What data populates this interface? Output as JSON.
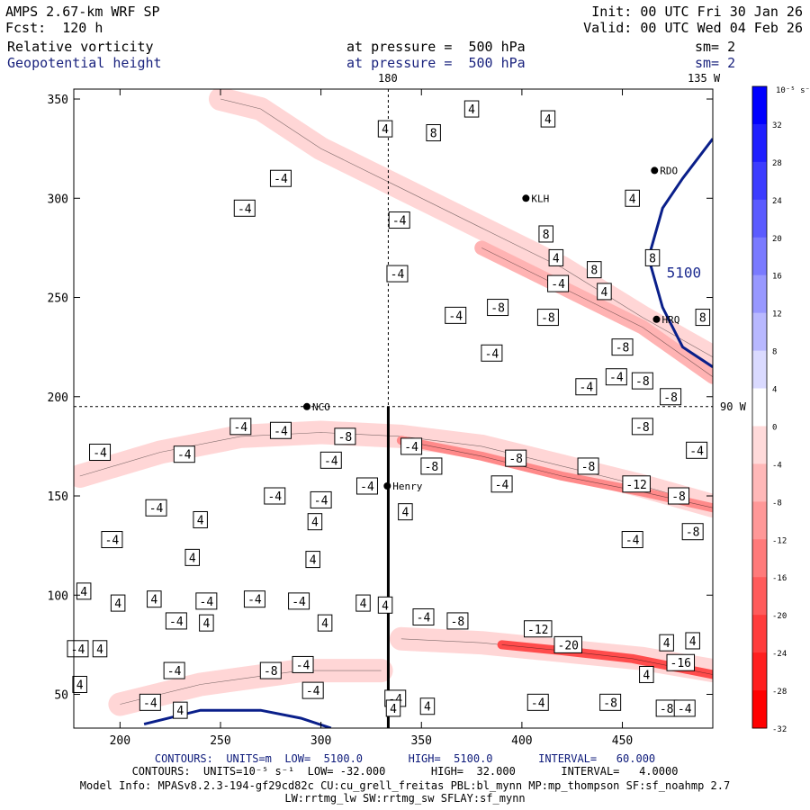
{
  "header": {
    "model": "AMPS 2.67-km WRF SP",
    "forecast": "Fcst:  120 h",
    "init": "Init: 00 UTC Fri 30 Jan 26",
    "valid": "Valid: 00 UTC Wed 04 Feb 26",
    "field1_name": "Relative vorticity",
    "field1_level": "at pressure =  500 hPa",
    "field1_smooth": "sm= 2",
    "field2_name": "Geopotential height",
    "field2_level": "at pressure =  500 hPa",
    "field2_smooth": "sm= 2"
  },
  "map_labels": {
    "lon_180": "180",
    "lon_135w": "135 W",
    "lat_90w": "90 W",
    "contour_5100": "5100"
  },
  "stations": [
    {
      "name": "NCO",
      "x": 293,
      "y": 195
    },
    {
      "name": "Henry",
      "x": 333,
      "y": 155
    },
    {
      "name": "KLH",
      "x": 402,
      "y": 300
    },
    {
      "name": "RDO",
      "x": 466,
      "y": 314
    },
    {
      "name": "HRQ",
      "x": 467,
      "y": 239
    }
  ],
  "colorbar": {
    "units": "10⁻⁵ s⁻¹",
    "ticks": [
      "32",
      "28",
      "24",
      "20",
      "16",
      "12",
      "8",
      "4",
      "0",
      "-4",
      "-8",
      "-12",
      "-16",
      "-20",
      "-24",
      "-28",
      "-32"
    ],
    "colors": [
      "#0000ff",
      "#1f1fff",
      "#3c3cff",
      "#5b5bff",
      "#7a7aff",
      "#9898ff",
      "#b8b8ff",
      "#dadaff",
      "#ffffff",
      "#ffdada",
      "#ffb8b8",
      "#ff9898",
      "#ff7a7a",
      "#ff5b5b",
      "#ff3c3c",
      "#ff1f1f",
      "#ff0000"
    ]
  },
  "footer": {
    "line1": "CONTOURS:  UNITS=m  LOW=  5100.0       HIGH=  5100.0       INTERVAL=   60.000",
    "line2": "CONTOURS:  UNITS=10⁻⁵ s⁻¹  LOW= -32.000       HIGH=  32.000       INTERVAL=   4.0000",
    "line3": "Model Info: MPASv8.2.3-194-gf29cd82c CU:cu_grell_freitas PBL:bl_mynn MP:mp_thompson SF:sf_noahmp 2.7",
    "line4": "LW:rrtmg_lw SW:rrtmg_sw SFLAY:sf_mynn"
  },
  "chart_data": {
    "type": "contour",
    "title": "Relative vorticity / Geopotential height at 500 hPa",
    "xlim": [
      177,
      495
    ],
    "ylim": [
      33,
      355
    ],
    "xticks": [
      200,
      250,
      300,
      350,
      400,
      450
    ],
    "yticks": [
      50,
      100,
      150,
      200,
      250,
      300,
      350
    ],
    "xtick_labels": [
      "200",
      "250",
      "300",
      "350",
      "400",
      "450"
    ],
    "ytick_labels": [
      "50",
      "100",
      "150",
      "200",
      "250",
      "300",
      "350"
    ],
    "vorticity_bands": [
      {
        "name": "upper-left-band",
        "level": -4,
        "points": [
          [
            250,
            350
          ],
          [
            270,
            345
          ],
          [
            300,
            325
          ],
          [
            340,
            305
          ],
          [
            380,
            285
          ],
          [
            420,
            265
          ],
          [
            460,
            240
          ],
          [
            495,
            220
          ]
        ]
      },
      {
        "name": "upper-right-band",
        "level": -8,
        "points": [
          [
            380,
            275
          ],
          [
            420,
            255
          ],
          [
            460,
            235
          ],
          [
            495,
            210
          ]
        ]
      },
      {
        "name": "mid-band",
        "level": -4,
        "points": [
          [
            180,
            160
          ],
          [
            220,
            172
          ],
          [
            260,
            180
          ],
          [
            300,
            182
          ],
          [
            340,
            180
          ],
          [
            380,
            175
          ],
          [
            420,
            165
          ],
          [
            460,
            155
          ],
          [
            495,
            145
          ]
        ]
      },
      {
        "name": "mid-core",
        "level": -12,
        "points": [
          [
            340,
            178
          ],
          [
            380,
            170
          ],
          [
            420,
            160
          ],
          [
            460,
            152
          ],
          [
            495,
            144
          ]
        ]
      },
      {
        "name": "lower-band",
        "level": -4,
        "points": [
          [
            340,
            78
          ],
          [
            380,
            76
          ],
          [
            420,
            72
          ],
          [
            460,
            68
          ],
          [
            495,
            62
          ]
        ]
      },
      {
        "name": "lower-core",
        "level": -20,
        "points": [
          [
            390,
            75
          ],
          [
            420,
            72
          ],
          [
            455,
            68
          ],
          [
            495,
            60
          ]
        ]
      },
      {
        "name": "bottom-band",
        "level": -4,
        "points": [
          [
            200,
            45
          ],
          [
            240,
            55
          ],
          [
            290,
            62
          ],
          [
            330,
            62
          ]
        ]
      }
    ],
    "vorticity_labels": [
      {
        "v": "4",
        "x": 375,
        "y": 345
      },
      {
        "v": "4",
        "x": 332,
        "y": 335
      },
      {
        "v": "8",
        "x": 356,
        "y": 333
      },
      {
        "v": "4",
        "x": 413,
        "y": 340
      },
      {
        "v": "-4",
        "x": 280,
        "y": 310
      },
      {
        "v": "-4",
        "x": 262,
        "y": 295
      },
      {
        "v": "-4",
        "x": 339,
        "y": 289
      },
      {
        "v": "4",
        "x": 455,
        "y": 300
      },
      {
        "v": "8",
        "x": 412,
        "y": 282
      },
      {
        "v": "-4",
        "x": 338,
        "y": 262
      },
      {
        "v": "4",
        "x": 417,
        "y": 270
      },
      {
        "v": "8",
        "x": 436,
        "y": 264
      },
      {
        "v": "8",
        "x": 465,
        "y": 270
      },
      {
        "v": "-4",
        "x": 418,
        "y": 257
      },
      {
        "v": "4",
        "x": 441,
        "y": 253
      },
      {
        "v": "-8",
        "x": 388,
        "y": 245
      },
      {
        "v": "-4",
        "x": 367,
        "y": 241
      },
      {
        "v": "-8",
        "x": 413,
        "y": 240
      },
      {
        "v": "8",
        "x": 490,
        "y": 240
      },
      {
        "v": "-4",
        "x": 385,
        "y": 222
      },
      {
        "v": "-8",
        "x": 450,
        "y": 225
      },
      {
        "v": "-4",
        "x": 447,
        "y": 210
      },
      {
        "v": "-4",
        "x": 432,
        "y": 205
      },
      {
        "v": "-8",
        "x": 460,
        "y": 208
      },
      {
        "v": "-8",
        "x": 474,
        "y": 200
      },
      {
        "v": "-4",
        "x": 260,
        "y": 185
      },
      {
        "v": "-4",
        "x": 280,
        "y": 183
      },
      {
        "v": "-8",
        "x": 312,
        "y": 180
      },
      {
        "v": "-8",
        "x": 460,
        "y": 185
      },
      {
        "v": "-4",
        "x": 190,
        "y": 172
      },
      {
        "v": "-4",
        "x": 232,
        "y": 171
      },
      {
        "v": "-4",
        "x": 305,
        "y": 168
      },
      {
        "v": "-4",
        "x": 345,
        "y": 175
      },
      {
        "v": "-8",
        "x": 397,
        "y": 169
      },
      {
        "v": "-8",
        "x": 355,
        "y": 165
      },
      {
        "v": "-8",
        "x": 433,
        "y": 165
      },
      {
        "v": "-4",
        "x": 487,
        "y": 173
      },
      {
        "v": "-4",
        "x": 323,
        "y": 155
      },
      {
        "v": "-4",
        "x": 390,
        "y": 156
      },
      {
        "v": "-12",
        "x": 457,
        "y": 156
      },
      {
        "v": "-4",
        "x": 277,
        "y": 150
      },
      {
        "v": "-4",
        "x": 300,
        "y": 148
      },
      {
        "v": "-8",
        "x": 478,
        "y": 150
      },
      {
        "v": "-4",
        "x": 218,
        "y": 144
      },
      {
        "v": "4",
        "x": 342,
        "y": 142
      },
      {
        "v": "4",
        "x": 240,
        "y": 138
      },
      {
        "v": "4",
        "x": 297,
        "y": 137
      },
      {
        "v": "-4",
        "x": 196,
        "y": 128
      },
      {
        "v": "-4",
        "x": 455,
        "y": 128
      },
      {
        "v": "-8",
        "x": 485,
        "y": 132
      },
      {
        "v": "4",
        "x": 236,
        "y": 119
      },
      {
        "v": "4",
        "x": 296,
        "y": 118
      },
      {
        "v": "4",
        "x": 182,
        "y": 102
      },
      {
        "v": "4",
        "x": 217,
        "y": 98
      },
      {
        "v": "-4",
        "x": 243,
        "y": 97
      },
      {
        "v": "-4",
        "x": 267,
        "y": 98
      },
      {
        "v": "-4",
        "x": 289,
        "y": 97
      },
      {
        "v": "4",
        "x": 321,
        "y": 96
      },
      {
        "v": "4",
        "x": 332,
        "y": 95
      },
      {
        "v": "4",
        "x": 199,
        "y": 96
      },
      {
        "v": "-4",
        "x": 228,
        "y": 87
      },
      {
        "v": "4",
        "x": 243,
        "y": 86
      },
      {
        "v": "4",
        "x": 302,
        "y": 86
      },
      {
        "v": "-4",
        "x": 351,
        "y": 89
      },
      {
        "v": "-8",
        "x": 368,
        "y": 87
      },
      {
        "v": "-12",
        "x": 408,
        "y": 83
      },
      {
        "v": "4",
        "x": 472,
        "y": 76
      },
      {
        "v": "4",
        "x": 485,
        "y": 77
      },
      {
        "v": "-4",
        "x": 179,
        "y": 73
      },
      {
        "v": "4",
        "x": 190,
        "y": 73
      },
      {
        "v": "-20",
        "x": 423,
        "y": 75
      },
      {
        "v": "-4",
        "x": 291,
        "y": 65
      },
      {
        "v": "-4",
        "x": 227,
        "y": 62
      },
      {
        "v": "-8",
        "x": 275,
        "y": 62
      },
      {
        "v": "-16",
        "x": 479,
        "y": 66
      },
      {
        "v": "4",
        "x": 180,
        "y": 55
      },
      {
        "v": "4",
        "x": 462,
        "y": 60
      },
      {
        "v": "-4",
        "x": 296,
        "y": 52
      },
      {
        "v": "-4",
        "x": 337,
        "y": 48
      },
      {
        "v": "-4",
        "x": 408,
        "y": 46
      },
      {
        "v": "4",
        "x": 353,
        "y": 44
      },
      {
        "v": "-4",
        "x": 215,
        "y": 46
      },
      {
        "v": "4",
        "x": 230,
        "y": 42
      },
      {
        "v": "4",
        "x": 336,
        "y": 43
      },
      {
        "v": "-8",
        "x": 444,
        "y": 46
      },
      {
        "v": "-8",
        "x": 472,
        "y": 43
      },
      {
        "v": "-4",
        "x": 481,
        "y": 43
      }
    ],
    "height_contours": [
      {
        "level": 5100,
        "points": [
          [
            212,
            35
          ],
          [
            240,
            42
          ],
          [
            270,
            42
          ],
          [
            290,
            38
          ],
          [
            305,
            33
          ]
        ]
      },
      {
        "level": 5100,
        "points": [
          [
            495,
            330
          ],
          [
            480,
            310
          ],
          [
            470,
            295
          ],
          [
            463,
            270
          ],
          [
            470,
            245
          ],
          [
            480,
            225
          ],
          [
            495,
            215
          ]
        ]
      }
    ]
  }
}
